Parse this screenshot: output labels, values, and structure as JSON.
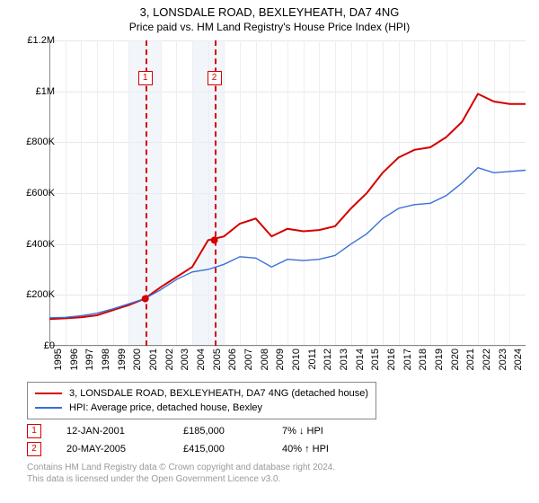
{
  "title": "3, LONSDALE ROAD, BEXLEYHEATH, DA7 4NG",
  "subtitle": "Price paid vs. HM Land Registry's House Price Index (HPI)",
  "chart": {
    "type": "line",
    "ylim": [
      0,
      1200000
    ],
    "ytick_step": 200000,
    "ylabels": [
      "£0",
      "£200K",
      "£400K",
      "£600K",
      "£800K",
      "£1M",
      "£1.2M"
    ],
    "x_start_year": 1995,
    "x_end_year": 2025,
    "xlabels": [
      "1995",
      "1996",
      "1997",
      "1998",
      "1999",
      "2000",
      "2001",
      "2002",
      "2003",
      "2004",
      "2005",
      "2006",
      "2007",
      "2008",
      "2009",
      "2010",
      "2011",
      "2012",
      "2013",
      "2014",
      "2015",
      "2016",
      "2017",
      "2018",
      "2019",
      "2020",
      "2021",
      "2022",
      "2023",
      "2024"
    ],
    "grid_color": "#e8e8e8",
    "background_color": "#ffffff",
    "shaded_bands": [
      {
        "from_year": 2000,
        "to_year": 2002,
        "color": "#eaf0f9"
      },
      {
        "from_year": 2004,
        "to_year": 2006,
        "color": "#eaf0f9"
      }
    ],
    "series": [
      {
        "name": "3, LONSDALE ROAD, BEXLEYHEATH, DA7 4NG (detached house)",
        "color": "#d40000",
        "width": 2,
        "points": [
          [
            1995,
            105000
          ],
          [
            1996,
            108000
          ],
          [
            1997,
            112000
          ],
          [
            1998,
            120000
          ],
          [
            1999,
            140000
          ],
          [
            2000,
            160000
          ],
          [
            2001,
            185000
          ],
          [
            2002,
            230000
          ],
          [
            2003,
            270000
          ],
          [
            2004,
            310000
          ],
          [
            2005,
            415000
          ],
          [
            2006,
            430000
          ],
          [
            2007,
            480000
          ],
          [
            2008,
            500000
          ],
          [
            2009,
            430000
          ],
          [
            2010,
            460000
          ],
          [
            2011,
            450000
          ],
          [
            2012,
            455000
          ],
          [
            2013,
            470000
          ],
          [
            2014,
            540000
          ],
          [
            2015,
            600000
          ],
          [
            2016,
            680000
          ],
          [
            2017,
            740000
          ],
          [
            2018,
            770000
          ],
          [
            2019,
            780000
          ],
          [
            2020,
            820000
          ],
          [
            2021,
            880000
          ],
          [
            2022,
            990000
          ],
          [
            2023,
            960000
          ],
          [
            2024,
            950000
          ],
          [
            2025,
            950000
          ]
        ]
      },
      {
        "name": "HPI: Average price, detached house, Bexley",
        "color": "#3a6fd8",
        "width": 1.4,
        "points": [
          [
            1995,
            110000
          ],
          [
            1996,
            112000
          ],
          [
            1997,
            118000
          ],
          [
            1998,
            128000
          ],
          [
            1999,
            145000
          ],
          [
            2000,
            165000
          ],
          [
            2001,
            185000
          ],
          [
            2002,
            220000
          ],
          [
            2003,
            260000
          ],
          [
            2004,
            290000
          ],
          [
            2005,
            300000
          ],
          [
            2006,
            320000
          ],
          [
            2007,
            350000
          ],
          [
            2008,
            345000
          ],
          [
            2009,
            310000
          ],
          [
            2010,
            340000
          ],
          [
            2011,
            335000
          ],
          [
            2012,
            340000
          ],
          [
            2013,
            355000
          ],
          [
            2014,
            400000
          ],
          [
            2015,
            440000
          ],
          [
            2016,
            500000
          ],
          [
            2017,
            540000
          ],
          [
            2018,
            555000
          ],
          [
            2019,
            560000
          ],
          [
            2020,
            590000
          ],
          [
            2021,
            640000
          ],
          [
            2022,
            700000
          ],
          [
            2023,
            680000
          ],
          [
            2024,
            685000
          ],
          [
            2025,
            690000
          ]
        ]
      }
    ],
    "markers": [
      {
        "id": "1",
        "year": 2001.04,
        "value": 185000,
        "color": "#d40000"
      },
      {
        "id": "2",
        "year": 2005.39,
        "value": 415000,
        "color": "#d40000"
      }
    ]
  },
  "legend": [
    {
      "color": "#d40000",
      "label": "3, LONSDALE ROAD, BEXLEYHEATH, DA7 4NG (detached house)"
    },
    {
      "color": "#3a6fd8",
      "label": "HPI: Average price, detached house, Bexley"
    }
  ],
  "sales": [
    {
      "id": "1",
      "color": "#d40000",
      "date": "12-JAN-2001",
      "price": "£185,000",
      "pct": "7% ↓ HPI"
    },
    {
      "id": "2",
      "color": "#d40000",
      "date": "20-MAY-2005",
      "price": "£415,000",
      "pct": "40% ↑ HPI"
    }
  ],
  "footer": {
    "line1": "Contains HM Land Registry data © Crown copyright and database right 2024.",
    "line2": "This data is licensed under the Open Government Licence v3.0."
  }
}
